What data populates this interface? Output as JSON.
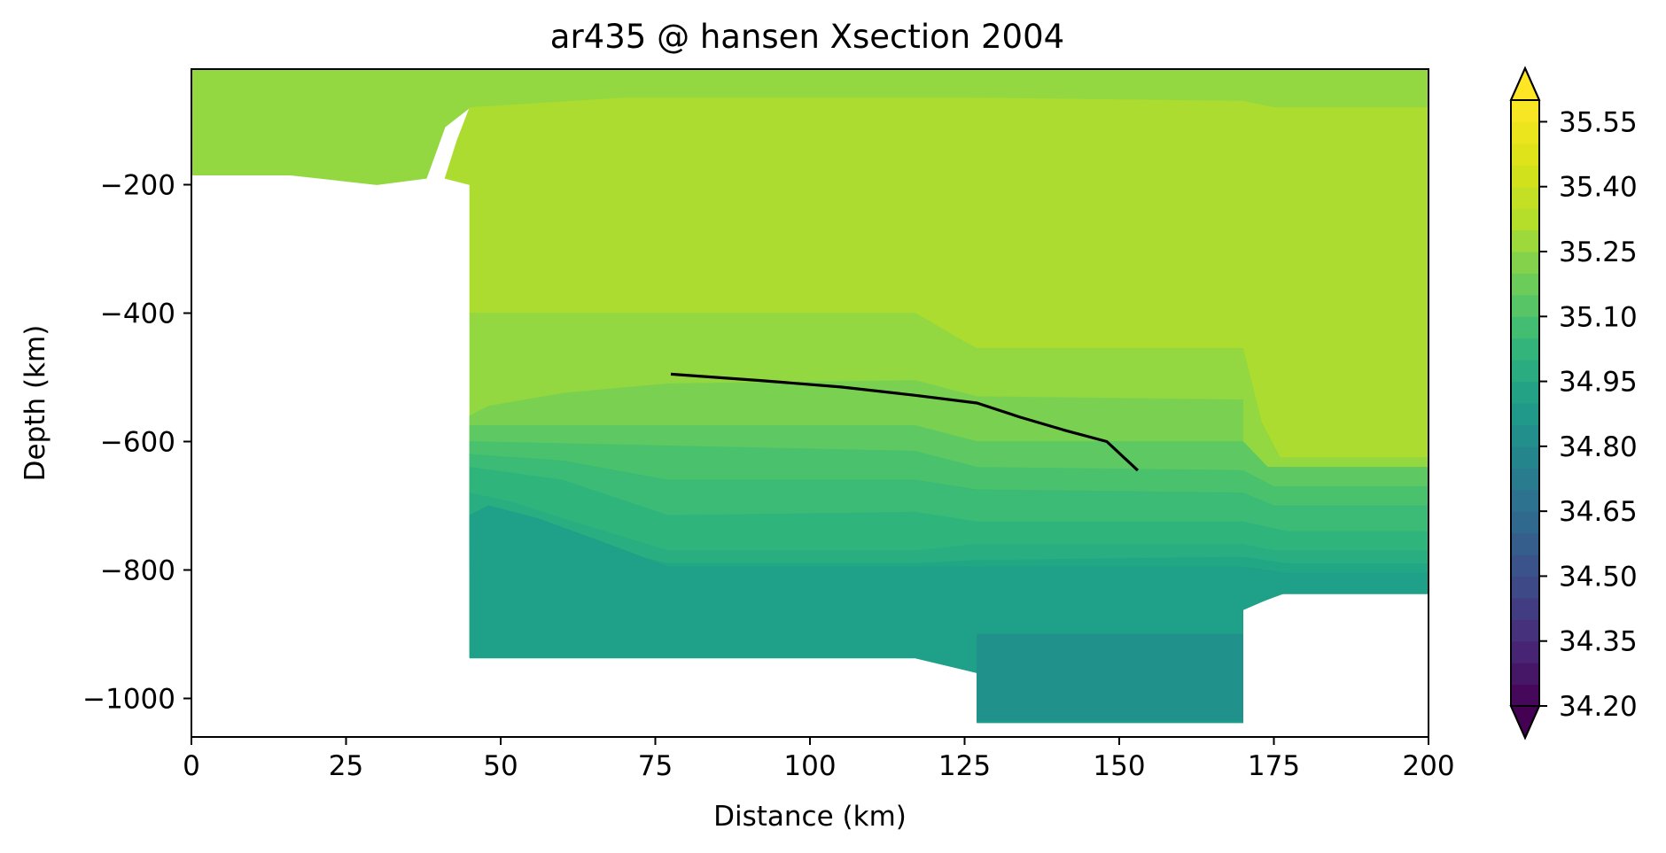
{
  "chart_data": {
    "type": "heatmap",
    "title": "ar435 @ hansen Xsection 2004",
    "xlabel": "Distance (km)",
    "ylabel": "Depth (km)",
    "xlim": [
      0,
      200
    ],
    "ylim": [
      -1060,
      -20
    ],
    "x_ticks": [
      0,
      25,
      50,
      75,
      100,
      125,
      150,
      175,
      200
    ],
    "x_tick_labels": [
      "0",
      "25",
      "50",
      "75",
      "100",
      "125",
      "150",
      "175",
      "200"
    ],
    "y_ticks": [
      -200,
      -400,
      -600,
      -800,
      -1000
    ],
    "y_tick_labels": [
      "−200",
      "−400",
      "−600",
      "−800",
      "−1000"
    ],
    "colormap": "viridis",
    "colorbar": {
      "range": [
        34.2,
        35.6
      ],
      "level_step": 0.05,
      "extend": "both",
      "ticks": [
        34.2,
        34.35,
        34.5,
        34.65,
        34.8,
        34.95,
        35.1,
        35.25,
        35.4,
        35.55
      ],
      "tick_labels": [
        "34.20",
        "34.35",
        "34.50",
        "34.65",
        "34.80",
        "34.95",
        "35.10",
        "35.25",
        "35.40",
        "35.55"
      ],
      "extend_colors": {
        "below": "#440154",
        "above": "#fde725"
      }
    },
    "fill_bands": [
      {
        "value": 35.4,
        "color": "#93d741",
        "polygon": [
          [
            0,
            -20
          ],
          [
            200,
            -20
          ],
          [
            200,
            -80
          ],
          [
            175,
            -80
          ],
          [
            170,
            -70
          ],
          [
            126,
            -65
          ],
          [
            70,
            -65
          ],
          [
            45,
            -80
          ],
          [
            41,
            -110
          ],
          [
            38,
            -190
          ],
          [
            30,
            -200
          ],
          [
            16,
            -185
          ],
          [
            0,
            -185
          ]
        ]
      },
      {
        "value": 35.45,
        "color": "#addc30",
        "polygon": [
          [
            45,
            -200
          ],
          [
            41,
            -190
          ],
          [
            43,
            -130
          ],
          [
            45,
            -80
          ],
          [
            70,
            -65
          ],
          [
            126,
            -65
          ],
          [
            170,
            -70
          ],
          [
            175,
            -80
          ],
          [
            200,
            -80
          ],
          [
            200,
            -625
          ],
          [
            176,
            -625
          ],
          [
            173,
            -570
          ],
          [
            170,
            -455
          ],
          [
            127,
            -455
          ],
          [
            125,
            -445
          ],
          [
            117,
            -400
          ],
          [
            45,
            -400
          ]
        ]
      },
      {
        "value": 35.35,
        "color": "#93d741",
        "polygon": [
          [
            45,
            -400
          ],
          [
            117,
            -400
          ],
          [
            125,
            -445
          ],
          [
            127,
            -455
          ],
          [
            170,
            -455
          ],
          [
            173,
            -570
          ],
          [
            176,
            -625
          ],
          [
            200,
            -625
          ],
          [
            200,
            -650
          ],
          [
            45,
            -650
          ]
        ]
      },
      {
        "value": 35.3,
        "color": "#7ad151",
        "polygon": [
          [
            45,
            -560
          ],
          [
            48,
            -545
          ],
          [
            60,
            -525
          ],
          [
            77,
            -510
          ],
          [
            117,
            -505
          ],
          [
            127,
            -530
          ],
          [
            170,
            -535
          ],
          [
            170,
            -650
          ],
          [
            45,
            -650
          ]
        ]
      },
      {
        "value": 35.25,
        "color": "#5ec962",
        "polygon": [
          [
            45,
            -575
          ],
          [
            117,
            -575
          ],
          [
            127,
            -600
          ],
          [
            170,
            -600
          ],
          [
            174,
            -640
          ],
          [
            200,
            -640
          ],
          [
            200,
            -700
          ],
          [
            45,
            -700
          ]
        ]
      },
      {
        "value": 35.2,
        "color": "#4ac16d",
        "polygon": [
          [
            45,
            -600
          ],
          [
            117,
            -615
          ],
          [
            127,
            -640
          ],
          [
            170,
            -645
          ],
          [
            175,
            -670
          ],
          [
            200,
            -670
          ],
          [
            200,
            -740
          ],
          [
            45,
            -740
          ]
        ]
      },
      {
        "value": 35.15,
        "color": "#3bbb75",
        "polygon": [
          [
            45,
            -620
          ],
          [
            60,
            -630
          ],
          [
            77,
            -660
          ],
          [
            117,
            -660
          ],
          [
            127,
            -675
          ],
          [
            170,
            -680
          ],
          [
            175,
            -700
          ],
          [
            200,
            -700
          ],
          [
            200,
            -760
          ],
          [
            45,
            -760
          ]
        ]
      },
      {
        "value": 35.1,
        "color": "#2fb47c",
        "polygon": [
          [
            45,
            -640
          ],
          [
            60,
            -660
          ],
          [
            77,
            -715
          ],
          [
            117,
            -710
          ],
          [
            127,
            -725
          ],
          [
            170,
            -725
          ],
          [
            177,
            -740
          ],
          [
            200,
            -740
          ],
          [
            200,
            -780
          ],
          [
            45,
            -780
          ]
        ]
      },
      {
        "value": 35.05,
        "color": "#28ae80",
        "polygon": [
          [
            45,
            -680
          ],
          [
            52,
            -695
          ],
          [
            60,
            -720
          ],
          [
            77,
            -770
          ],
          [
            117,
            -770
          ],
          [
            127,
            -760
          ],
          [
            170,
            -760
          ],
          [
            175,
            -770
          ],
          [
            200,
            -770
          ],
          [
            200,
            -800
          ],
          [
            45,
            -800
          ]
        ]
      },
      {
        "value": 35.0,
        "color": "#22a785",
        "polygon": [
          [
            45,
            -720
          ],
          [
            60,
            -750
          ],
          [
            77,
            -790
          ],
          [
            117,
            -790
          ],
          [
            127,
            -785
          ],
          [
            170,
            -780
          ],
          [
            177,
            -790
          ],
          [
            200,
            -790
          ],
          [
            200,
            -835
          ],
          [
            177,
            -835
          ],
          [
            170,
            -860
          ],
          [
            170,
            -1035
          ],
          [
            127,
            -1035
          ],
          [
            127,
            -960
          ],
          [
            117,
            -935
          ],
          [
            45,
            -935
          ]
        ]
      },
      {
        "value": 34.95,
        "color": "#1fa088",
        "polygon": [
          [
            45,
            -715
          ],
          [
            48,
            -700
          ],
          [
            56,
            -720
          ],
          [
            66,
            -755
          ],
          [
            77,
            -795
          ],
          [
            117,
            -795
          ],
          [
            127,
            -795
          ],
          [
            170,
            -795
          ],
          [
            177,
            -805
          ],
          [
            200,
            -805
          ],
          [
            200,
            -837
          ],
          [
            176,
            -837
          ],
          [
            170,
            -862
          ],
          [
            170,
            -1038
          ],
          [
            127,
            -1038
          ],
          [
            127,
            -960
          ],
          [
            117,
            -937
          ],
          [
            45,
            -937
          ]
        ]
      },
      {
        "value": 34.9,
        "color": "#21918c",
        "polygon": [
          [
            127,
            -900
          ],
          [
            170,
            -900
          ],
          [
            170,
            -1035
          ],
          [
            127,
            -1035
          ]
        ]
      }
    ],
    "series": [
      {
        "type": "line",
        "color": "#000000",
        "x": [
          77.5,
          92,
          105,
          117,
          127,
          134,
          141,
          148,
          153
        ],
        "y": [
          -495,
          -505,
          -515,
          -528,
          -540,
          -562,
          -582,
          -600,
          -645
        ]
      }
    ]
  }
}
